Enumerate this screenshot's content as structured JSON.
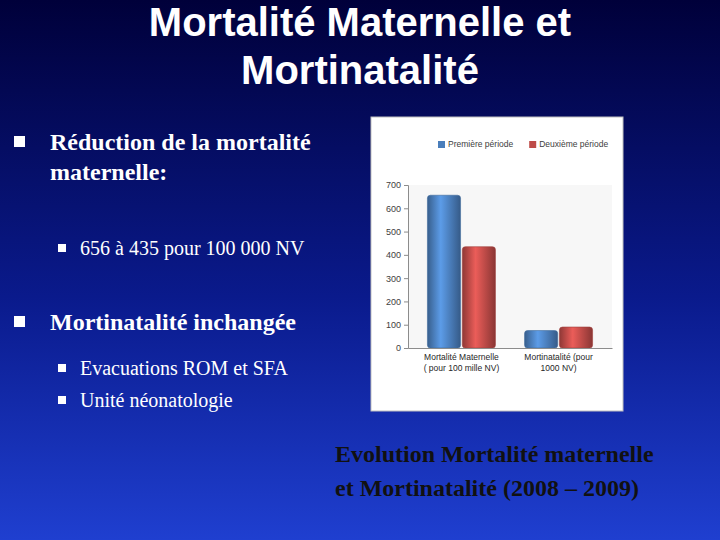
{
  "slide": {
    "title": "Mortalité Maternelle et\nMortinatalité",
    "bullets": [
      {
        "text": "Réduction de la mortalité\nmaternelle:",
        "sub": [
          "656 à 435 pour 100 000 NV"
        ]
      },
      {
        "text": "Mortinatalité inchangée",
        "sub": [
          "Evacuations ROM et SFA",
          "Unité néonatologie"
        ]
      }
    ],
    "caption": "Evolution Mortalité maternelle\net Mortinatalité (2008 – 2009)"
  },
  "chart_data": {
    "type": "bar",
    "categories": [
      "Mortalité Maternelle\n( pour 100 mille NV)",
      "Mortinatalité (pour\n1000 NV)"
    ],
    "series": [
      {
        "name": "Première période",
        "color": "#4a7ebb",
        "values": [
          656,
          75
        ]
      },
      {
        "name": "Deuxième période",
        "color": "#be4b48",
        "values": [
          435,
          90
        ]
      }
    ],
    "ylim": [
      0,
      700
    ],
    "yticks": [
      0,
      100,
      200,
      300,
      400,
      500,
      600,
      700
    ],
    "grid": false,
    "legend": "top",
    "data_labels": false
  }
}
